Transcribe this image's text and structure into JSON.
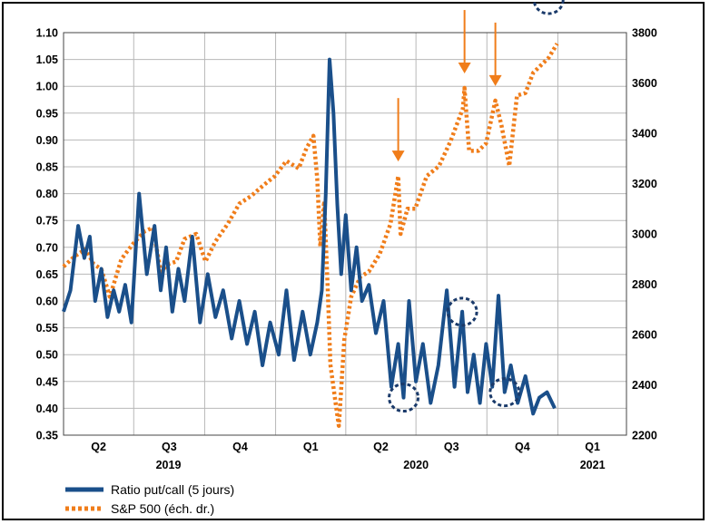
{
  "chart_data": {
    "type": "line",
    "title": "",
    "xlabel": "",
    "ylabel": "",
    "y_left_lim": [
      0.35,
      1.1
    ],
    "y_left_ticks": [
      "1.10",
      "1.05",
      "1.00",
      "0.95",
      "0.90",
      "0.85",
      "0.80",
      "0.75",
      "0.70",
      "0.65",
      "0.60",
      "0.55",
      "0.50",
      "0.45",
      "0.40",
      "0.35"
    ],
    "y_right_lim": [
      2200,
      3800
    ],
    "y_right_ticks": [
      "3800",
      "3600",
      "3400",
      "3200",
      "3000",
      "2800",
      "2600",
      "2400",
      "2200"
    ],
    "x_range": [
      "2019-04-01",
      "2021-03-31"
    ],
    "quarter_labels": [
      "Q2",
      "Q3",
      "Q4",
      "Q1",
      "Q2",
      "Q3",
      "Q4",
      "Q1"
    ],
    "year_labels": [
      "2019",
      "2020",
      "2021"
    ],
    "grid": true,
    "legend_position": "bottom-left",
    "series": [
      {
        "name": "Ratio put/call (5 jours)",
        "axis": "left",
        "color": "#1a4f8a",
        "style": "solid",
        "x": [
          "2019-04-01",
          "2019-04-10",
          "2019-04-20",
          "2019-04-28",
          "2019-05-05",
          "2019-05-12",
          "2019-05-20",
          "2019-05-28",
          "2019-06-05",
          "2019-06-12",
          "2019-06-20",
          "2019-06-28",
          "2019-07-08",
          "2019-07-18",
          "2019-07-28",
          "2019-08-05",
          "2019-08-12",
          "2019-08-20",
          "2019-08-28",
          "2019-09-05",
          "2019-09-15",
          "2019-09-25",
          "2019-10-05",
          "2019-10-15",
          "2019-10-25",
          "2019-11-05",
          "2019-11-15",
          "2019-11-25",
          "2019-12-05",
          "2019-12-15",
          "2019-12-25",
          "2020-01-05",
          "2020-01-15",
          "2020-01-25",
          "2020-02-05",
          "2020-02-15",
          "2020-02-24",
          "2020-03-01",
          "2020-03-06",
          "2020-03-11",
          "2020-03-16",
          "2020-03-21",
          "2020-03-26",
          "2020-04-01",
          "2020-04-08",
          "2020-04-15",
          "2020-04-22",
          "2020-05-01",
          "2020-05-10",
          "2020-05-20",
          "2020-05-30",
          "2020-06-08",
          "2020-06-15",
          "2020-06-22",
          "2020-07-01",
          "2020-07-10",
          "2020-07-20",
          "2020-07-30",
          "2020-08-10",
          "2020-08-20",
          "2020-08-30",
          "2020-09-06",
          "2020-09-14",
          "2020-09-22",
          "2020-09-30",
          "2020-10-08",
          "2020-10-16",
          "2020-10-24",
          "2020-11-01",
          "2020-11-10",
          "2020-11-20",
          "2020-11-30",
          "2020-12-08",
          "2020-12-18",
          "2020-12-28"
        ],
        "values": [
          0.58,
          0.62,
          0.74,
          0.68,
          0.72,
          0.6,
          0.66,
          0.57,
          0.62,
          0.58,
          0.63,
          0.56,
          0.8,
          0.65,
          0.74,
          0.62,
          0.7,
          0.58,
          0.66,
          0.6,
          0.72,
          0.56,
          0.65,
          0.57,
          0.62,
          0.53,
          0.6,
          0.52,
          0.58,
          0.48,
          0.56,
          0.5,
          0.62,
          0.49,
          0.58,
          0.5,
          0.56,
          0.62,
          0.8,
          1.05,
          0.95,
          0.78,
          0.65,
          0.76,
          0.62,
          0.7,
          0.6,
          0.63,
          0.54,
          0.6,
          0.44,
          0.52,
          0.42,
          0.6,
          0.45,
          0.52,
          0.41,
          0.48,
          0.62,
          0.44,
          0.58,
          0.43,
          0.5,
          0.41,
          0.52,
          0.44,
          0.61,
          0.43,
          0.48,
          0.41,
          0.46,
          0.39,
          0.42,
          0.43,
          0.4
        ]
      },
      {
        "name": "S&P 500 (éch. dr.)",
        "axis": "right",
        "color": "#f07d1a",
        "style": "dotted",
        "x": [
          "2019-04-01",
          "2019-04-15",
          "2019-04-30",
          "2019-05-10",
          "2019-05-20",
          "2019-05-31",
          "2019-06-15",
          "2019-06-30",
          "2019-07-15",
          "2019-07-26",
          "2019-08-05",
          "2019-08-15",
          "2019-08-25",
          "2019-09-05",
          "2019-09-20",
          "2019-10-02",
          "2019-10-15",
          "2019-10-31",
          "2019-11-15",
          "2019-11-30",
          "2019-12-15",
          "2019-12-31",
          "2020-01-15",
          "2020-01-31",
          "2020-02-10",
          "2020-02-19",
          "2020-02-24",
          "2020-02-28",
          "2020-03-04",
          "2020-03-09",
          "2020-03-12",
          "2020-03-16",
          "2020-03-20",
          "2020-03-23",
          "2020-03-30",
          "2020-04-08",
          "2020-04-20",
          "2020-05-01",
          "2020-05-15",
          "2020-05-29",
          "2020-06-08",
          "2020-06-11",
          "2020-06-20",
          "2020-06-30",
          "2020-07-15",
          "2020-07-31",
          "2020-08-15",
          "2020-08-31",
          "2020-09-02",
          "2020-09-08",
          "2020-09-20",
          "2020-09-30",
          "2020-10-12",
          "2020-10-20",
          "2020-10-30",
          "2020-11-09",
          "2020-11-20",
          "2020-11-30",
          "2020-12-10",
          "2020-12-20",
          "2020-12-31"
        ],
        "values": [
          2870,
          2910,
          2940,
          2880,
          2860,
          2750,
          2900,
          2960,
          3010,
          3025,
          2850,
          2880,
          2890,
          2980,
          3000,
          2890,
          2970,
          3040,
          3120,
          3150,
          3190,
          3230,
          3290,
          3260,
          3340,
          3390,
          3220,
          2950,
          3130,
          2750,
          2480,
          2390,
          2300,
          2237,
          2580,
          2750,
          2830,
          2850,
          2920,
          3040,
          3230,
          3000,
          3100,
          3100,
          3230,
          3270,
          3370,
          3500,
          3580,
          3330,
          3330,
          3360,
          3530,
          3430,
          3270,
          3550,
          3560,
          3640,
          3670,
          3700,
          3756
        ]
      }
    ],
    "annotations": {
      "arrows_on": [
        "2020-06-08",
        "2020-09-02",
        "2020-10-12"
      ],
      "circled_lows_on": [
        "2020-06-15",
        "2020-08-30",
        "2020-10-24",
        "2020-12-20"
      ]
    }
  },
  "legend": [
    {
      "label": "Ratio put/call (5 jours)"
    },
    {
      "label": "S&P 500 (éch. dr.)"
    }
  ]
}
